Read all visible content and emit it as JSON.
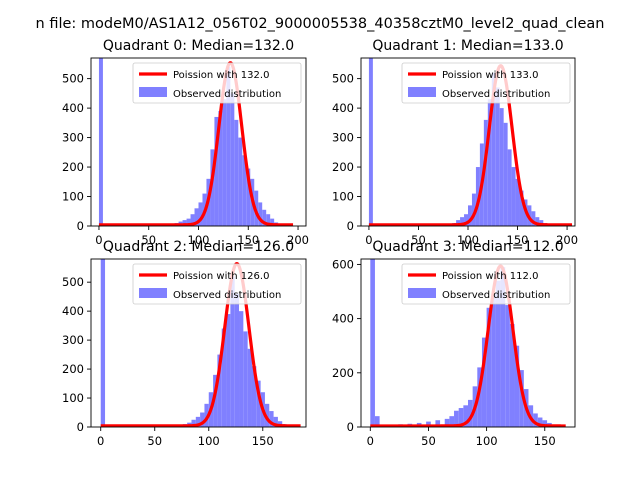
{
  "figure": {
    "suptitle": "n file: modeM0/AS1A12_056T02_9000005538_40358cztM0_level2_quad_clean"
  },
  "colors": {
    "hist": "#8080ff",
    "fit": "#ff0000",
    "legend_edge": "#cccccc",
    "background": "#ffffff"
  },
  "chart_data": [
    {
      "type": "histogram+line",
      "title": "Quadrant 0: Median=132.0",
      "legend": [
        "Poission with 132.0",
        "Observed distribution"
      ],
      "legend_placement": "upper right",
      "xlim": [
        -8,
        208
      ],
      "ylim": [
        0,
        570
      ],
      "xticks": [
        0,
        50,
        100,
        150,
        200
      ],
      "yticks": [
        0,
        100,
        200,
        300,
        400,
        500
      ],
      "bin_width": 4,
      "hist": {
        "bin_starts": [
          0,
          68,
          72,
          76,
          80,
          84,
          88,
          92,
          96,
          100,
          104,
          108,
          112,
          116,
          120,
          124,
          128,
          132,
          136,
          140,
          144,
          148,
          152,
          156,
          160,
          164,
          168,
          172,
          176,
          180,
          184,
          188
        ],
        "counts": [
          570,
          3,
          5,
          10,
          15,
          20,
          25,
          40,
          60,
          80,
          110,
          160,
          260,
          370,
          390,
          430,
          540,
          450,
          360,
          300,
          240,
          195,
          160,
          120,
          80,
          55,
          40,
          25,
          12,
          8,
          4,
          2
        ]
      },
      "fit": {
        "mean": 132.0,
        "peak": 550,
        "x_range": [
          0,
          195
        ]
      }
    },
    {
      "type": "histogram+line",
      "title": "Quadrant 1: Median=133.0",
      "legend": [
        "Poission with 133.0",
        "Observed distribution"
      ],
      "legend_placement": "upper right",
      "xlim": [
        -8,
        208
      ],
      "ylim": [
        0,
        570
      ],
      "xticks": [
        0,
        50,
        100,
        150,
        200
      ],
      "yticks": [
        0,
        100,
        200,
        300,
        400,
        500
      ],
      "bin_width": 4,
      "hist": {
        "bin_starts": [
          0,
          76,
          80,
          84,
          88,
          92,
          96,
          100,
          104,
          108,
          112,
          116,
          120,
          124,
          128,
          132,
          136,
          140,
          144,
          148,
          152,
          156,
          160,
          164,
          168,
          172,
          176,
          180,
          184,
          188,
          192,
          196
        ],
        "counts": [
          570,
          2,
          5,
          10,
          20,
          30,
          40,
          70,
          110,
          200,
          280,
          360,
          430,
          520,
          470,
          400,
          350,
          260,
          200,
          160,
          120,
          90,
          70,
          50,
          30,
          20,
          10,
          5,
          3,
          2,
          1,
          1
        ]
      },
      "fit": {
        "mean": 133.0,
        "peak": 540,
        "x_range": [
          0,
          205
        ]
      }
    },
    {
      "type": "histogram+line",
      "title": "Quadrant 2: Median=126.0",
      "legend": [
        "Poission with 126.0",
        "Observed distribution"
      ],
      "legend_placement": "upper right",
      "xlim": [
        -9,
        190
      ],
      "ylim": [
        0,
        580
      ],
      "xticks": [
        0,
        50,
        100,
        150
      ],
      "yticks": [
        0,
        100,
        200,
        300,
        400,
        500
      ],
      "bin_width": 4,
      "hist": {
        "bin_starts": [
          0,
          72,
          76,
          80,
          84,
          88,
          92,
          96,
          100,
          104,
          108,
          112,
          116,
          120,
          124,
          128,
          132,
          136,
          140,
          144,
          148,
          152,
          156,
          160,
          164,
          168,
          172,
          176
        ],
        "counts": [
          580,
          3,
          10,
          15,
          25,
          35,
          50,
          80,
          120,
          180,
          250,
          340,
          390,
          520,
          460,
          400,
          330,
          270,
          210,
          160,
          120,
          80,
          55,
          35,
          20,
          10,
          5,
          2
        ]
      },
      "fit": {
        "mean": 126.0,
        "peak": 560,
        "x_range": [
          0,
          185
        ]
      }
    },
    {
      "type": "histogram+line",
      "title": "Quadrant 3: Median=112.0",
      "legend": [
        "Poission with 112.0",
        "Observed distribution"
      ],
      "legend_placement": "upper right",
      "xlim": [
        -8,
        176
      ],
      "ylim": [
        0,
        620
      ],
      "xticks": [
        0,
        50,
        100,
        150
      ],
      "yticks": [
        0,
        200,
        400,
        600
      ],
      "bin_width": 4,
      "hist": {
        "bin_starts": [
          0,
          4,
          20,
          24,
          32,
          40,
          48,
          56,
          64,
          68,
          72,
          76,
          80,
          84,
          88,
          92,
          96,
          100,
          104,
          108,
          112,
          116,
          120,
          124,
          128,
          132,
          136,
          140,
          144,
          148,
          152,
          156
        ],
        "counts": [
          620,
          40,
          8,
          10,
          12,
          15,
          20,
          25,
          30,
          40,
          60,
          70,
          80,
          100,
          150,
          220,
          330,
          440,
          490,
          540,
          590,
          450,
          380,
          300,
          210,
          140,
          80,
          50,
          35,
          25,
          15,
          5
        ]
      },
      "fit": {
        "mean": 112.0,
        "peak": 590,
        "x_range": [
          0,
          168
        ]
      }
    }
  ]
}
